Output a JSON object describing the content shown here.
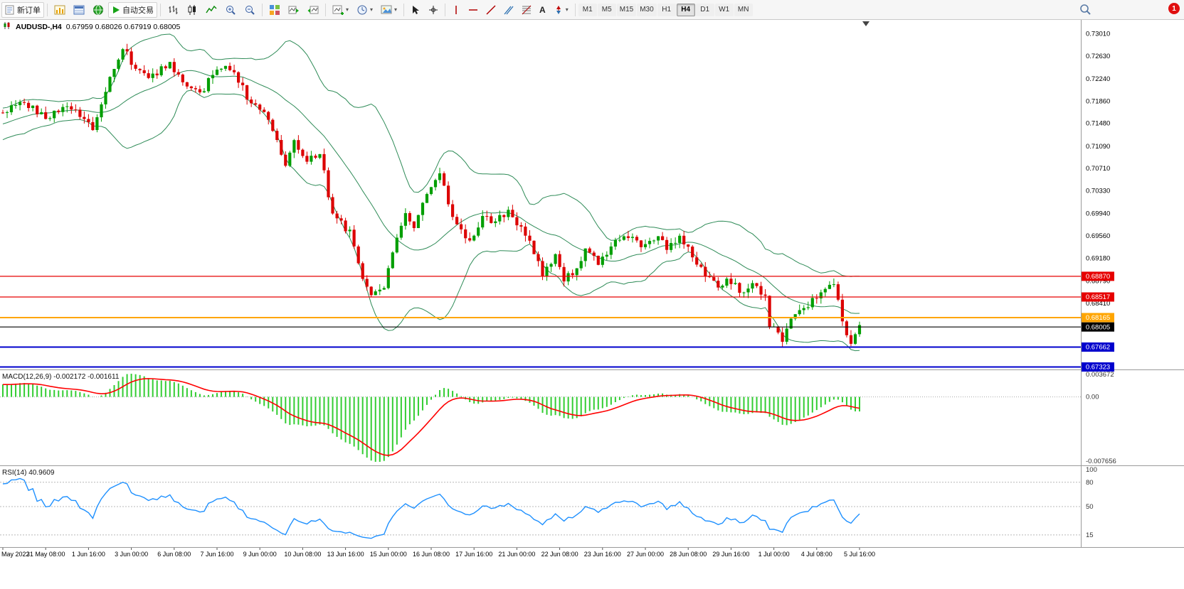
{
  "toolbar": {
    "new_order": "新订单",
    "auto_trading": "自动交易",
    "timeframes": [
      "M1",
      "M5",
      "M15",
      "M30",
      "H1",
      "H4",
      "D1",
      "W1",
      "MN"
    ],
    "active_timeframe": "H4",
    "notification_count": "1"
  },
  "chart": {
    "title": "AUDUSD-,H4",
    "ohlc": "0.67959 0.68026 0.67919 0.68005",
    "open": "0.67959",
    "high": "0.68026",
    "low": "0.67919",
    "close": "0.68005"
  },
  "chart_data": {
    "type": "candlestick",
    "symbol": "AUDUSD-",
    "timeframe": "H4",
    "num_candles": 201,
    "price_range": {
      "min": 0.6728,
      "max": 0.7315
    },
    "price_axis_labels": [
      "0.73010",
      "0.72630",
      "0.72240",
      "0.71860",
      "0.71480",
      "0.71090",
      "0.70710",
      "0.70330",
      "0.69940",
      "0.69560",
      "0.69180",
      "0.68790",
      "0.68410",
      "0.68030",
      "0.67650",
      "0.67270"
    ],
    "close_anchors": [
      [
        0,
        0.7168
      ],
      [
        5,
        0.7185
      ],
      [
        10,
        0.7158
      ],
      [
        15,
        0.7178
      ],
      [
        20,
        0.715
      ],
      [
        21,
        0.7132
      ],
      [
        25,
        0.723
      ],
      [
        28,
        0.7278
      ],
      [
        31,
        0.7242
      ],
      [
        34,
        0.7225
      ],
      [
        39,
        0.7252
      ],
      [
        42,
        0.7215
      ],
      [
        46,
        0.7196
      ],
      [
        50,
        0.7245
      ],
      [
        54,
        0.7236
      ],
      [
        58,
        0.718
      ],
      [
        62,
        0.7158
      ],
      [
        66,
        0.7078
      ],
      [
        68,
        0.7118
      ],
      [
        71,
        0.7086
      ],
      [
        74,
        0.71
      ],
      [
        77,
        0.6992
      ],
      [
        81,
        0.6962
      ],
      [
        84,
        0.6882
      ],
      [
        86,
        0.6855
      ],
      [
        89,
        0.6872
      ],
      [
        91,
        0.693
      ],
      [
        94,
        0.6996
      ],
      [
        96,
        0.6972
      ],
      [
        100,
        0.7042
      ],
      [
        102,
        0.7062
      ],
      [
        104,
        0.7012
      ],
      [
        106,
        0.6976
      ],
      [
        109,
        0.6946
      ],
      [
        112,
        0.699
      ],
      [
        115,
        0.698
      ],
      [
        118,
        0.7
      ],
      [
        120,
        0.6976
      ],
      [
        123,
        0.695
      ],
      [
        126,
        0.6892
      ],
      [
        129,
        0.692
      ],
      [
        131,
        0.6882
      ],
      [
        134,
        0.6896
      ],
      [
        136,
        0.693
      ],
      [
        139,
        0.6912
      ],
      [
        143,
        0.6946
      ],
      [
        146,
        0.6956
      ],
      [
        149,
        0.6936
      ],
      [
        153,
        0.696
      ],
      [
        155,
        0.693
      ],
      [
        158,
        0.6956
      ],
      [
        161,
        0.6922
      ],
      [
        164,
        0.6892
      ],
      [
        167,
        0.6866
      ],
      [
        169,
        0.6886
      ],
      [
        173,
        0.6856
      ],
      [
        175,
        0.6876
      ],
      [
        178,
        0.685
      ],
      [
        179,
        0.6806
      ],
      [
        182,
        0.6776
      ],
      [
        184,
        0.6816
      ],
      [
        187,
        0.6832
      ],
      [
        189,
        0.6846
      ],
      [
        192,
        0.6862
      ],
      [
        194,
        0.6876
      ],
      [
        197,
        0.6782
      ],
      [
        198,
        0.6772
      ],
      [
        200,
        0.68
      ]
    ],
    "candle_colors": {
      "up": "#009e00",
      "down": "#dc0000"
    },
    "indicators": {
      "bollinger": {
        "period": 20,
        "deviation": 2,
        "color": "#2e8b57"
      },
      "macd": {
        "label": "MACD(12,26,9)",
        "value_main": "-0.002172",
        "value_signal": "-0.001611",
        "axis_labels": [
          "0.003672",
          "0.00",
          "-0.007656"
        ],
        "hist_color": "#32cd32",
        "signal_color": "#ff0000"
      },
      "rsi": {
        "label": "RSI(14)",
        "value": "40.9609",
        "axis_labels": [
          100,
          80,
          50,
          15
        ],
        "levels": [
          80,
          50,
          15
        ],
        "color": "#1e90ff"
      }
    },
    "horizontal_lines": [
      {
        "label": "0.68870",
        "price": 0.6887,
        "color": "#e60000",
        "width": 1.2
      },
      {
        "label": "0.68517",
        "price": 0.68517,
        "color": "#e60000",
        "width": 1.2
      },
      {
        "label": "0.68165",
        "price": 0.68165,
        "color": "#ffa500",
        "width": 2
      },
      {
        "label": "0.68005",
        "price": 0.68005,
        "color": "#000000",
        "width": 1.2
      },
      {
        "label": "0.67662",
        "price": 0.67662,
        "color": "#0000cd",
        "width": 2
      },
      {
        "label": "0.67323",
        "price": 0.67323,
        "color": "#0000cd",
        "width": 2
      }
    ],
    "time_labels": [
      [
        0,
        "May 2022"
      ],
      [
        10,
        "31 May 08:00"
      ],
      [
        20,
        "1 Jun 16:00"
      ],
      [
        30,
        "3 Jun 00:00"
      ],
      [
        40,
        "6 Jun 08:00"
      ],
      [
        50,
        "7 Jun 16:00"
      ],
      [
        60,
        "9 Jun 00:00"
      ],
      [
        70,
        "10 Jun 08:00"
      ],
      [
        80,
        "13 Jun 16:00"
      ],
      [
        90,
        "15 Jun 00:00"
      ],
      [
        100,
        "16 Jun 08:00"
      ],
      [
        110,
        "17 Jun 16:00"
      ],
      [
        120,
        "21 Jun 00:00"
      ],
      [
        130,
        "22 Jun 08:00"
      ],
      [
        140,
        "23 Jun 16:00"
      ],
      [
        150,
        "27 Jun 00:00"
      ],
      [
        160,
        "28 Jun 08:00"
      ],
      [
        170,
        "29 Jun 16:00"
      ],
      [
        180,
        "1 Jul 00:00"
      ],
      [
        190,
        "4 Jul 08:00"
      ],
      [
        200,
        "5 Jul 16:00"
      ]
    ]
  }
}
